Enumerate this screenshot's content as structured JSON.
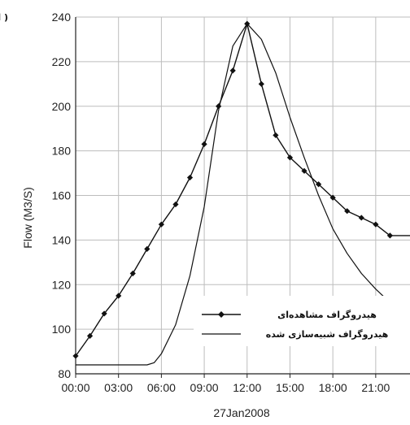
{
  "panel_label": "( الف",
  "chart_data": {
    "type": "line",
    "xlabel": "27Jan2008",
    "ylabel": "Flow (M3/S)",
    "x_tick_labels": [
      "00:00",
      "03:00",
      "06:00",
      "09:00",
      "12:00",
      "15:00",
      "18:00",
      "21:00"
    ],
    "x_tick_hours": [
      0,
      3,
      6,
      9,
      12,
      15,
      18,
      21
    ],
    "xlim": [
      0,
      23.4
    ],
    "ylim": [
      80,
      240
    ],
    "y_ticks": [
      80,
      100,
      120,
      140,
      160,
      180,
      200,
      220,
      240
    ],
    "grid": true,
    "legend_position": "bottom-right",
    "series": [
      {
        "name": "هیدروگراف مشاهده‌ای",
        "style": "line-with-diamond-markers",
        "x": [
          0,
          1,
          2,
          3,
          4,
          5,
          6,
          7,
          8,
          9,
          10,
          11,
          12,
          13,
          14,
          15,
          16,
          17,
          18,
          19,
          20,
          21,
          22,
          23.4
        ],
        "y": [
          88,
          97,
          107,
          115,
          125,
          136,
          147,
          156,
          168,
          183,
          200,
          216,
          237,
          210,
          187,
          177,
          171,
          165,
          159,
          153,
          150,
          147,
          142,
          142
        ]
      },
      {
        "name": "هیدروگراف شبیه‌سازی شده",
        "style": "line",
        "x": [
          0,
          1,
          2,
          3,
          4,
          5,
          5.5,
          6,
          7,
          8,
          9,
          10,
          11,
          12,
          13,
          14,
          15,
          16,
          17,
          18,
          19,
          20,
          21,
          22,
          23,
          23.4
        ],
        "y": [
          84,
          84,
          84,
          84,
          84,
          84,
          85,
          89,
          102,
          124,
          155,
          198,
          227,
          237,
          230,
          215,
          195,
          177,
          160,
          145,
          134,
          125,
          118,
          112,
          107,
          105
        ]
      }
    ]
  }
}
